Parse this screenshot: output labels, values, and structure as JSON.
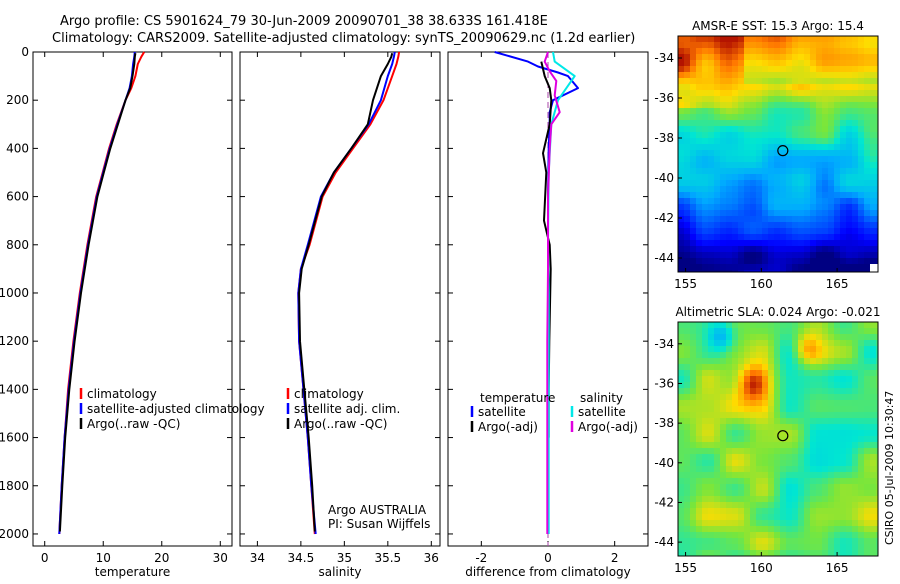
{
  "title": {
    "line1": "Argo profile: CS 5901624_79 30-Jun-2009 20090701_38 38.633S 161.418E",
    "line2": "Climatology: CARS2009. Satellite-adjusted climatology: synTS_20090629.nc (1.2d earlier)"
  },
  "side_stamp": "CSIRO 05-Jul-2009 10:30:47",
  "chart_data": [
    {
      "type": "line",
      "name": "temperature-profile",
      "xlabel": "temperature",
      "ylabel": "",
      "xlim": [
        -2,
        32
      ],
      "ylim": [
        2050,
        0
      ],
      "xticks": [
        0,
        10,
        20,
        30
      ],
      "yticks": [
        0,
        200,
        400,
        600,
        800,
        1000,
        1200,
        1400,
        1600,
        1800,
        2000
      ],
      "legend": [
        "climatology",
        "satellite-adjusted climatology",
        "Argo(..raw -QC)"
      ],
      "legend_position": "lower-middle",
      "series": [
        {
          "name": "climatology",
          "color": "#ff0000",
          "x": [
            17.0,
            16.5,
            15.9,
            15.5,
            14.8,
            13.8,
            12.3,
            11.0,
            9.9,
            8.8,
            7.3,
            6.0,
            4.9,
            4.0,
            3.4,
            2.9,
            2.5
          ],
          "y": [
            0,
            20,
            50,
            100,
            150,
            200,
            300,
            400,
            500,
            600,
            800,
            1000,
            1200,
            1400,
            1600,
            1800,
            2000
          ]
        },
        {
          "name": "satellite-adjusted climatology",
          "color": "#0000ff",
          "x": [
            15.4,
            15.3,
            15.1,
            14.9,
            14.5,
            13.8,
            12.4,
            11.1,
            10.0,
            8.9,
            7.4,
            6.1,
            5.0,
            4.1,
            3.4,
            2.9,
            2.5
          ],
          "y": [
            0,
            20,
            50,
            100,
            150,
            200,
            300,
            400,
            500,
            600,
            800,
            1000,
            1200,
            1400,
            1600,
            1800,
            2000
          ]
        },
        {
          "name": "Argo(..raw -QC)",
          "color": "#000000",
          "x": [
            15.5,
            15.4,
            15.3,
            15.0,
            14.6,
            13.8,
            12.5,
            11.2,
            10.1,
            9.0,
            7.5,
            6.2,
            5.1,
            4.2,
            3.5,
            3.0,
            2.6
          ],
          "y": [
            5,
            20,
            50,
            100,
            150,
            200,
            300,
            400,
            500,
            600,
            800,
            1000,
            1200,
            1400,
            1600,
            1800,
            1990
          ]
        }
      ]
    },
    {
      "type": "line",
      "name": "salinity-profile",
      "xlabel": "salinity",
      "ylabel": "",
      "xlim": [
        33.8,
        36.1
      ],
      "ylim": [
        2050,
        0
      ],
      "xticks": [
        34,
        34.5,
        35,
        35.5,
        36
      ],
      "yticks": [
        0,
        200,
        400,
        600,
        800,
        1000,
        1200,
        1400,
        1600,
        1800,
        2000
      ],
      "legend": [
        "climatology",
        "satellite adj. clim.",
        "Argo(..raw -QC)"
      ],
      "legend_position": "lower-middle",
      "annotation": [
        "Argo AUSTRALIA",
        "PI: Susan Wijffels"
      ],
      "series": [
        {
          "name": "climatology",
          "color": "#ff0000",
          "x": [
            35.63,
            35.62,
            35.6,
            35.55,
            35.45,
            35.3,
            35.1,
            34.9,
            34.75,
            34.6,
            34.5,
            34.47,
            34.48,
            34.53,
            34.58,
            34.62,
            34.66
          ],
          "y": [
            0,
            20,
            50,
            100,
            200,
            300,
            400,
            500,
            600,
            800,
            900,
            1000,
            1200,
            1400,
            1600,
            1800,
            2000
          ]
        },
        {
          "name": "satellite adj. clim.",
          "color": "#0000ff",
          "x": [
            35.58,
            35.57,
            35.55,
            35.5,
            35.42,
            35.28,
            35.08,
            34.88,
            34.73,
            34.58,
            34.5,
            34.47,
            34.48,
            34.53,
            34.58,
            34.62,
            34.67
          ],
          "y": [
            0,
            20,
            50,
            100,
            200,
            300,
            400,
            500,
            600,
            800,
            900,
            1000,
            1200,
            1400,
            1600,
            1800,
            2000
          ]
        },
        {
          "name": "Argo(..raw -QC)",
          "color": "#000000",
          "x": [
            35.55,
            35.54,
            35.5,
            35.42,
            35.33,
            35.27,
            35.08,
            34.88,
            34.74,
            34.59,
            34.51,
            34.48,
            34.49,
            34.54,
            34.59,
            34.63,
            34.66
          ],
          "y": [
            5,
            20,
            50,
            100,
            200,
            300,
            400,
            500,
            600,
            800,
            900,
            1000,
            1200,
            1400,
            1600,
            1800,
            1990
          ]
        }
      ]
    },
    {
      "type": "line",
      "name": "difference-profile",
      "xlabel": "difference from climatology",
      "ylabel": "",
      "xlim": [
        -3,
        3
      ],
      "ylim": [
        2050,
        0
      ],
      "xticks": [
        -2,
        0,
        2
      ],
      "yticks": [
        0,
        200,
        400,
        600,
        800,
        1000,
        1200,
        1400,
        1600,
        1800,
        2000
      ],
      "legend_groups": [
        {
          "title": "temperature",
          "items": [
            "satellite",
            "Argo(-adj)"
          ]
        },
        {
          "title": "salinity",
          "items": [
            "satellite",
            "Argo(-adj)"
          ]
        }
      ],
      "legend_position": "lower-middle",
      "series": [
        {
          "name": "temperature satellite",
          "color": "#0000ff",
          "x": [
            -1.6,
            -0.6,
            -0.3,
            0.3,
            0.6,
            0.9,
            0.15,
            0.05,
            0.05,
            0.02,
            0.0,
            0.0,
            0.0,
            0.0,
            0.0,
            0.0
          ],
          "y": [
            0,
            40,
            60,
            85,
            100,
            150,
            200,
            250,
            300,
            400,
            600,
            800,
            1000,
            1400,
            1800,
            2000
          ]
        },
        {
          "name": "temperature Argo(-adj)",
          "color": "#000000",
          "x": [
            -0.2,
            -0.1,
            0.05,
            0.1,
            0.05,
            -0.15,
            -0.05,
            -0.12,
            0.05,
            0.08,
            0.04,
            0.02,
            0.02
          ],
          "y": [
            40,
            100,
            150,
            200,
            300,
            420,
            500,
            700,
            800,
            900,
            1200,
            1400,
            1600
          ]
        },
        {
          "name": "salinity satellite",
          "color": "#00e8e8",
          "x": [
            0.15,
            0.2,
            0.8,
            0.3,
            0.1,
            0.02,
            0.0,
            0.02,
            0.02,
            0.02,
            0.02,
            0.02
          ],
          "y": [
            0,
            40,
            100,
            200,
            300,
            500,
            800,
            1000,
            1300,
            1600,
            1800,
            2000
          ]
        },
        {
          "name": "salinity Argo(-adj)",
          "color": "#e000e0",
          "x": [
            0.0,
            -0.1,
            0.05,
            0.25,
            0.2,
            0.35,
            0.1,
            0.05,
            0.0,
            0.0,
            -0.02,
            -0.02,
            -0.02,
            -0.02
          ],
          "y": [
            0,
            40,
            80,
            120,
            180,
            250,
            300,
            400,
            600,
            900,
            1200,
            1500,
            1800,
            2000
          ]
        }
      ]
    },
    {
      "type": "heatmap",
      "name": "sst-map",
      "title": "AMSR-E SST: 15.3 Argo: 15.4",
      "xlim": [
        154.5,
        167.7
      ],
      "ylim": [
        -44.7,
        -32.9
      ],
      "xticks": [
        155,
        160,
        165
      ],
      "yticks": [
        -34,
        -36,
        -38,
        -40,
        -42,
        -44
      ],
      "marker": {
        "lon": 161.418,
        "lat": -38.633
      }
    },
    {
      "type": "heatmap",
      "name": "sla-map",
      "title": "Altimetric SLA: 0.024 Argo: -0.021",
      "xlim": [
        154.5,
        167.7
      ],
      "ylim": [
        -44.7,
        -32.9
      ],
      "xticks": [
        155,
        160,
        165
      ],
      "yticks": [
        -34,
        -36,
        -38,
        -40,
        -42,
        -44
      ],
      "marker": {
        "lon": 161.418,
        "lat": -38.633
      }
    }
  ]
}
